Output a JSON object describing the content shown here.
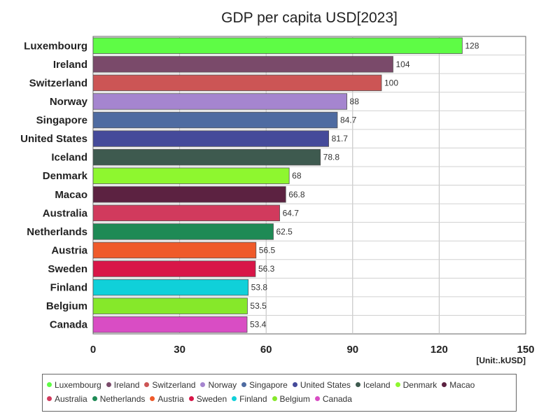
{
  "chart_data": {
    "type": "bar",
    "orientation": "horizontal",
    "title": "GDP per capita USD[2023]",
    "unit_label": "[Unit:.kUSD]",
    "xlim": [
      0,
      150
    ],
    "x_ticks": [
      0,
      30,
      60,
      90,
      120,
      150
    ],
    "grid": true,
    "legend_position": "bottom",
    "categories": [
      "Luxembourg",
      "Ireland",
      "Switzerland",
      "Norway",
      "Singapore",
      "United States",
      "Iceland",
      "Denmark",
      "Macao",
      "Australia",
      "Netherlands",
      "Austria",
      "Sweden",
      "Finland",
      "Belgium",
      "Canada"
    ],
    "values": [
      128,
      104,
      100,
      88,
      84.7,
      81.7,
      78.8,
      68,
      66.8,
      64.7,
      62.5,
      56.5,
      56.3,
      53.8,
      53.5,
      53.4
    ],
    "value_labels": [
      "128",
      "104",
      "100",
      "88",
      "84.7",
      "81.7",
      "78.8",
      "68",
      "66.8",
      "64.7",
      "62.5",
      "56.5",
      "56.3",
      "53.8",
      "53.5",
      "53.4"
    ],
    "colors": [
      "#5efc45",
      "#7a4a6a",
      "#cc5555",
      "#a585cf",
      "#4e6ba1",
      "#454a9a",
      "#3e5a4f",
      "#8ef72f",
      "#5c2241",
      "#d13a5d",
      "#1e8a55",
      "#ef5a2a",
      "#d81648",
      "#10d0d9",
      "#86e82a",
      "#d94dc4"
    ]
  }
}
